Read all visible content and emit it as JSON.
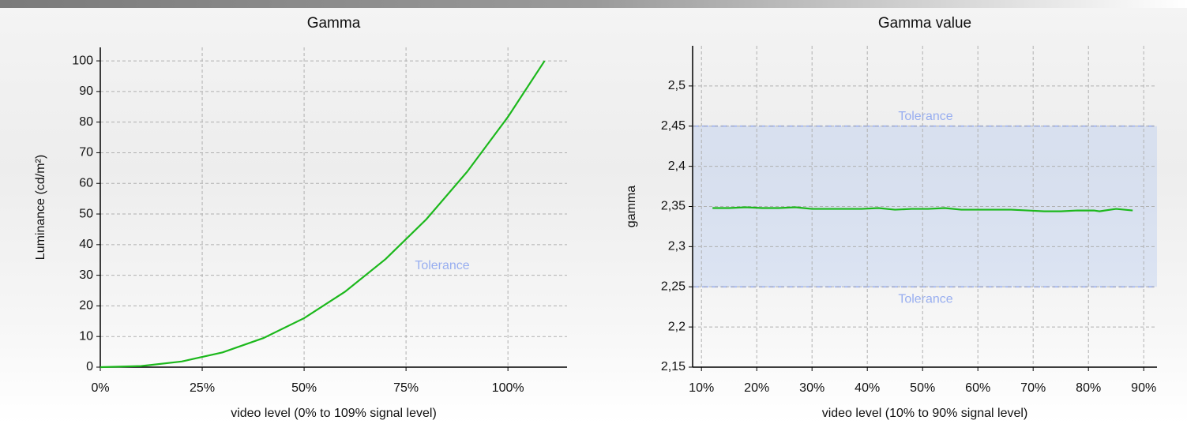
{
  "chart_data": [
    {
      "type": "line",
      "title": "Gamma",
      "x_label": "video level (0% to 109% signal level)",
      "y_label": "Luminance (cd/m²)",
      "x": [
        0,
        10,
        20,
        30,
        40,
        50,
        60,
        70,
        80,
        90,
        100,
        109
      ],
      "values": [
        0,
        0.36,
        1.86,
        4.82,
        9.48,
        16.0,
        24.6,
        35.3,
        48.3,
        63.8,
        81.7,
        100
      ],
      "color": "#1cb81c",
      "xlim": [
        0,
        114.5
      ],
      "ylim": [
        0,
        104.4
      ],
      "xticks": [
        {
          "value": 0,
          "label": "0%"
        },
        {
          "value": 25,
          "label": "25%"
        },
        {
          "value": 50,
          "label": "50%"
        },
        {
          "value": 75,
          "label": "75%"
        },
        {
          "value": 100,
          "label": "100%"
        }
      ],
      "yticks": [
        0,
        10,
        20,
        30,
        40,
        50,
        60,
        70,
        80,
        90,
        100
      ],
      "grid": true,
      "annotations": [
        "Tolerance"
      ]
    },
    {
      "type": "line",
      "title": "Gamma value",
      "x_label": "video level (10% to 90% signal level)",
      "y_label": "gamma",
      "x": [
        12,
        15,
        18,
        21,
        24,
        27,
        30,
        33,
        36,
        39,
        42,
        45,
        48,
        51,
        54,
        57,
        60,
        63,
        66,
        69,
        72,
        75,
        78,
        81,
        82,
        85,
        88
      ],
      "values": [
        2.348,
        2.348,
        2.349,
        2.348,
        2.348,
        2.349,
        2.347,
        2.347,
        2.347,
        2.347,
        2.348,
        2.346,
        2.347,
        2.347,
        2.348,
        2.346,
        2.346,
        2.346,
        2.346,
        2.345,
        2.344,
        2.344,
        2.345,
        2.345,
        2.344,
        2.347,
        2.345
      ],
      "color": "#1cb81c",
      "xlim": [
        8.4,
        92.4
      ],
      "ylim": [
        2.15,
        2.55
      ],
      "xticks": [
        {
          "value": 10,
          "label": "10%"
        },
        {
          "value": 20,
          "label": "20%"
        },
        {
          "value": 30,
          "label": "30%"
        },
        {
          "value": 40,
          "label": "40%"
        },
        {
          "value": 50,
          "label": "50%"
        },
        {
          "value": 60,
          "label": "60%"
        },
        {
          "value": 70,
          "label": "70%"
        },
        {
          "value": 80,
          "label": "80%"
        },
        {
          "value": 90,
          "label": "90%"
        }
      ],
      "yticks": [
        {
          "value": 2.15,
          "label": "2,15"
        },
        {
          "value": 2.2,
          "label": "2,2"
        },
        {
          "value": 2.25,
          "label": "2,25"
        },
        {
          "value": 2.3,
          "label": "2,3"
        },
        {
          "value": 2.35,
          "label": "2,35"
        },
        {
          "value": 2.4,
          "label": "2,4"
        },
        {
          "value": 2.45,
          "label": "2,45"
        },
        {
          "value": 2.5,
          "label": "2,5"
        }
      ],
      "grid": true,
      "tolerance_band": [
        2.25,
        2.45
      ],
      "annotations": [
        "Tolerance",
        "Tolerance"
      ]
    }
  ]
}
